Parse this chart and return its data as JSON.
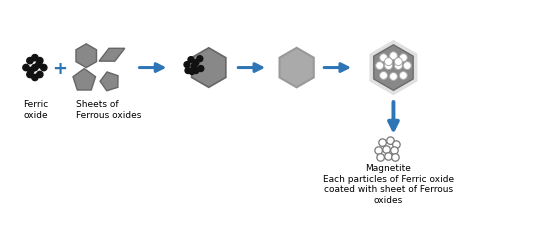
{
  "bg_color": "#ffffff",
  "arrow_color": "#2E75B6",
  "gray": "#888888",
  "dark_gray": "#666666",
  "dot_color": "#111111",
  "labels": {
    "ferric_oxide": "Ferric\noxide",
    "sheets": "Sheets of\nFerrous oxides",
    "magnetite": "Magnetite\nEach particles of Ferric oxide\ncoated with sheet of Ferrous\noxides"
  },
  "label_fontsize": 6.5
}
